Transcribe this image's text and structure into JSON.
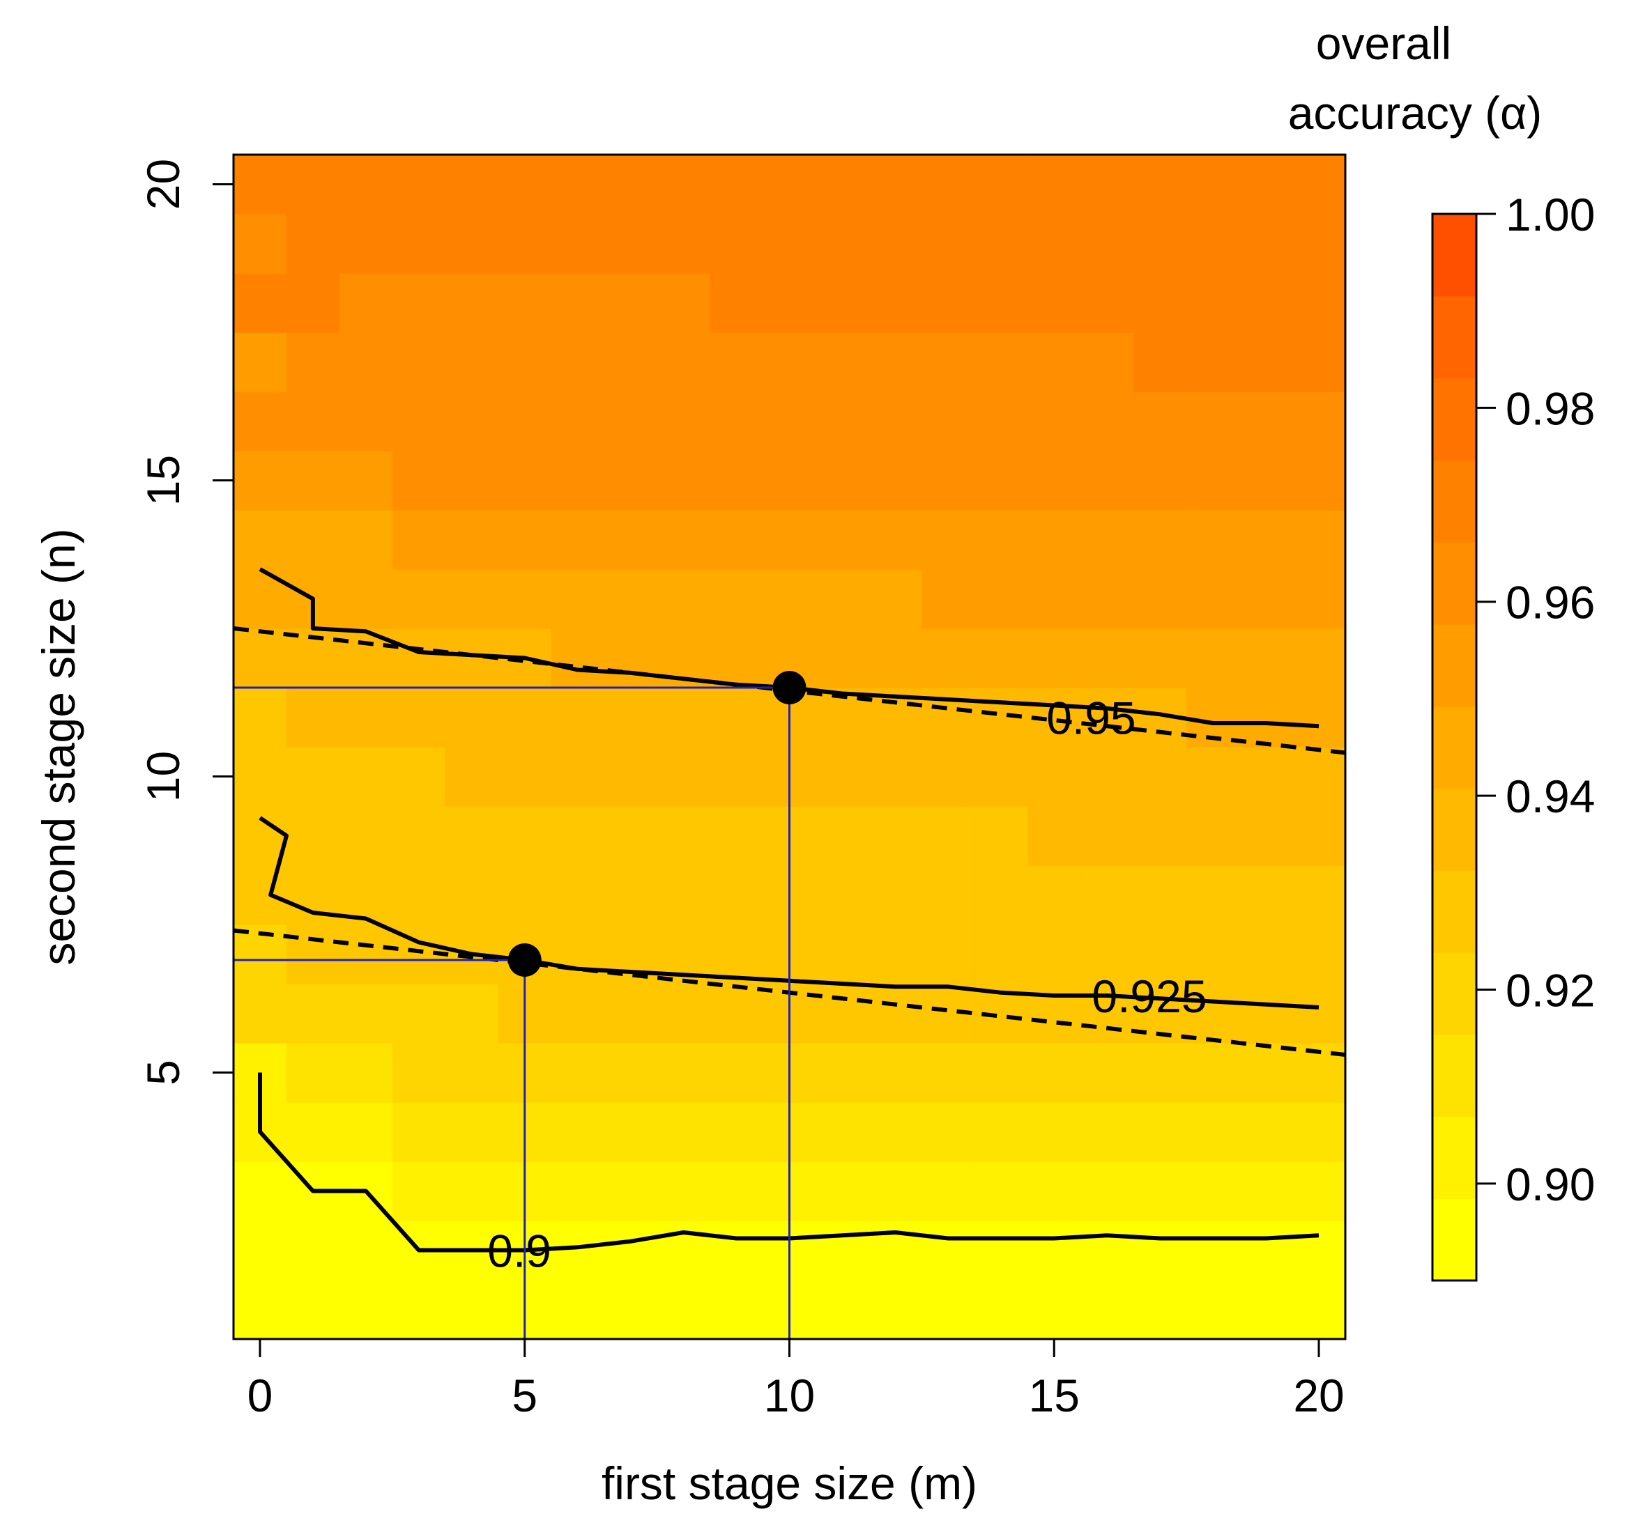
{
  "chart_data": {
    "type": "heatmap",
    "xlabel": "first stage size  (m)",
    "ylabel": "second stage size  (n)",
    "x_ticks": [
      0,
      5,
      10,
      15,
      20
    ],
    "y_ticks": [
      5,
      10,
      15,
      20
    ],
    "xlim": [
      -0.5,
      20.5
    ],
    "ylim": [
      0.5,
      20.5
    ],
    "legend": {
      "title_line1": "overall",
      "title_line2": "accuracy (α)",
      "min": 0.89,
      "max": 1.0,
      "ticks": [
        "0.90",
        "0.92",
        "0.94",
        "0.96",
        "0.98",
        "1.00"
      ],
      "tick_values": [
        0.9,
        0.92,
        0.94,
        0.96,
        0.98,
        1.0
      ],
      "colors": [
        "#FFFF00",
        "#FFF100",
        "#FFE300",
        "#FFD500",
        "#FFC700",
        "#FFB900",
        "#FFAB00",
        "#FF9D00",
        "#FF8F00",
        "#FF8100",
        "#FF7300",
        "#FF6500",
        "#FF5000"
      ],
      "placement": "right"
    },
    "heatmap_rows": [
      {
        "n": 1,
        "values": [
          0.89,
          0.89,
          0.89,
          0.89,
          0.89,
          0.89,
          0.89,
          0.89,
          0.89,
          0.89,
          0.89,
          0.89,
          0.89,
          0.89,
          0.89,
          0.89,
          0.89,
          0.89,
          0.89,
          0.89,
          0.89
        ]
      },
      {
        "n": 2,
        "values": [
          0.895,
          0.895,
          0.895,
          0.895,
          0.895,
          0.895,
          0.895,
          0.895,
          0.895,
          0.895,
          0.895,
          0.895,
          0.895,
          0.895,
          0.895,
          0.895,
          0.895,
          0.895,
          0.895,
          0.895,
          0.895
        ]
      },
      {
        "n": 3,
        "values": [
          0.895,
          0.895,
          0.895,
          0.903,
          0.903,
          0.903,
          0.903,
          0.903,
          0.903,
          0.903,
          0.903,
          0.903,
          0.903,
          0.903,
          0.903,
          0.903,
          0.903,
          0.903,
          0.903,
          0.903,
          0.903
        ]
      },
      {
        "n": 4,
        "values": [
          0.903,
          0.903,
          0.903,
          0.911,
          0.911,
          0.911,
          0.911,
          0.911,
          0.911,
          0.911,
          0.911,
          0.911,
          0.911,
          0.911,
          0.911,
          0.911,
          0.911,
          0.911,
          0.911,
          0.911,
          0.911
        ]
      },
      {
        "n": 5,
        "values": [
          0.903,
          0.911,
          0.911,
          0.918,
          0.918,
          0.918,
          0.918,
          0.918,
          0.918,
          0.918,
          0.918,
          0.918,
          0.918,
          0.918,
          0.918,
          0.918,
          0.918,
          0.918,
          0.918,
          0.918,
          0.918
        ]
      },
      {
        "n": 6,
        "values": [
          0.918,
          0.918,
          0.918,
          0.918,
          0.918,
          0.925,
          0.925,
          0.925,
          0.925,
          0.925,
          0.925,
          0.925,
          0.925,
          0.925,
          0.925,
          0.925,
          0.925,
          0.925,
          0.925,
          0.925,
          0.925
        ]
      },
      {
        "n": 7,
        "values": [
          0.918,
          0.925,
          0.925,
          0.925,
          0.925,
          0.925,
          0.925,
          0.925,
          0.925,
          0.925,
          0.925,
          0.925,
          0.925,
          0.925,
          0.925,
          0.925,
          0.925,
          0.925,
          0.925,
          0.925,
          0.932
        ]
      },
      {
        "n": 8,
        "values": [
          0.925,
          0.925,
          0.925,
          0.925,
          0.925,
          0.925,
          0.925,
          0.925,
          0.925,
          0.925,
          0.925,
          0.925,
          0.925,
          0.925,
          0.925,
          0.925,
          0.925,
          0.925,
          0.925,
          0.932,
          0.932
        ]
      },
      {
        "n": 9,
        "values": [
          0.925,
          0.932,
          0.932,
          0.932,
          0.932,
          0.932,
          0.932,
          0.932,
          0.932,
          0.932,
          0.932,
          0.932,
          0.932,
          0.932,
          0.932,
          0.939,
          0.939,
          0.939,
          0.939,
          0.939,
          0.939
        ]
      },
      {
        "n": 10,
        "values": [
          0.932,
          0.932,
          0.932,
          0.932,
          0.939,
          0.939,
          0.939,
          0.939,
          0.939,
          0.939,
          0.939,
          0.939,
          0.939,
          0.939,
          0.939,
          0.939,
          0.939,
          0.939,
          0.939,
          0.939,
          0.939
        ]
      },
      {
        "n": 11,
        "values": [
          0.932,
          0.939,
          0.939,
          0.939,
          0.939,
          0.939,
          0.939,
          0.939,
          0.939,
          0.939,
          0.939,
          0.939,
          0.939,
          0.939,
          0.939,
          0.939,
          0.939,
          0.939,
          0.946,
          0.946,
          0.946
        ]
      },
      {
        "n": 12,
        "values": [
          0.939,
          0.939,
          0.939,
          0.939,
          0.939,
          0.939,
          0.946,
          0.946,
          0.946,
          0.946,
          0.946,
          0.946,
          0.946,
          0.946,
          0.946,
          0.946,
          0.946,
          0.946,
          0.946,
          0.946,
          0.946
        ]
      },
      {
        "n": 13,
        "values": [
          0.946,
          0.946,
          0.946,
          0.946,
          0.946,
          0.946,
          0.946,
          0.946,
          0.946,
          0.946,
          0.946,
          0.946,
          0.946,
          0.954,
          0.954,
          0.954,
          0.954,
          0.954,
          0.954,
          0.954,
          0.954
        ]
      },
      {
        "n": 14,
        "values": [
          0.946,
          0.946,
          0.946,
          0.954,
          0.954,
          0.954,
          0.954,
          0.954,
          0.954,
          0.954,
          0.954,
          0.954,
          0.954,
          0.954,
          0.954,
          0.954,
          0.954,
          0.954,
          0.954,
          0.954,
          0.954
        ]
      },
      {
        "n": 15,
        "values": [
          0.954,
          0.954,
          0.954,
          0.961,
          0.961,
          0.961,
          0.961,
          0.961,
          0.961,
          0.961,
          0.961,
          0.961,
          0.961,
          0.961,
          0.961,
          0.961,
          0.961,
          0.961,
          0.961,
          0.961,
          0.961
        ]
      },
      {
        "n": 16,
        "values": [
          0.961,
          0.961,
          0.961,
          0.961,
          0.961,
          0.961,
          0.961,
          0.961,
          0.961,
          0.961,
          0.961,
          0.961,
          0.961,
          0.961,
          0.961,
          0.961,
          0.961,
          0.961,
          0.961,
          0.961,
          0.961
        ]
      },
      {
        "n": 17,
        "values": [
          0.954,
          0.961,
          0.961,
          0.961,
          0.961,
          0.961,
          0.961,
          0.961,
          0.961,
          0.961,
          0.961,
          0.961,
          0.961,
          0.961,
          0.961,
          0.961,
          0.961,
          0.968,
          0.968,
          0.968,
          0.968
        ]
      },
      {
        "n": 18,
        "values": [
          0.968,
          0.968,
          0.961,
          0.961,
          0.961,
          0.961,
          0.961,
          0.961,
          0.961,
          0.968,
          0.968,
          0.968,
          0.968,
          0.968,
          0.968,
          0.968,
          0.968,
          0.968,
          0.968,
          0.968,
          0.968
        ]
      },
      {
        "n": 19,
        "values": [
          0.961,
          0.968,
          0.968,
          0.968,
          0.968,
          0.968,
          0.968,
          0.968,
          0.968,
          0.968,
          0.968,
          0.968,
          0.968,
          0.968,
          0.968,
          0.968,
          0.968,
          0.968,
          0.968,
          0.968,
          0.968
        ]
      },
      {
        "n": 20,
        "values": [
          0.968,
          0.968,
          0.968,
          0.968,
          0.968,
          0.968,
          0.968,
          0.968,
          0.968,
          0.968,
          0.968,
          0.968,
          0.968,
          0.968,
          0.968,
          0.968,
          0.968,
          0.968,
          0.968,
          0.968,
          0.968
        ]
      }
    ],
    "contours": [
      {
        "level": "0.95",
        "label": "0.95",
        "label_at": [
          15.7,
          11.0
        ],
        "points": [
          [
            0,
            13.5
          ],
          [
            1,
            13.0
          ],
          [
            1,
            12.5
          ],
          [
            2,
            12.45
          ],
          [
            3,
            12.1
          ],
          [
            4,
            12.05
          ],
          [
            5,
            12.0
          ],
          [
            6,
            11.8
          ],
          [
            7,
            11.75
          ],
          [
            8,
            11.65
          ],
          [
            9,
            11.55
          ],
          [
            10,
            11.5
          ],
          [
            11,
            11.4
          ],
          [
            12,
            11.35
          ],
          [
            13,
            11.3
          ],
          [
            14,
            11.25
          ],
          [
            15,
            11.2
          ],
          [
            16,
            11.15
          ],
          [
            17,
            11.05
          ],
          [
            18,
            10.9
          ],
          [
            19,
            10.9
          ],
          [
            20,
            10.85
          ]
        ]
      },
      {
        "level": "0.925",
        "label": "0.925",
        "label_at": [
          16.8,
          6.3
        ],
        "points": [
          [
            0,
            9.3
          ],
          [
            0.5,
            9.0
          ],
          [
            0.2,
            8.0
          ],
          [
            1,
            7.7
          ],
          [
            2,
            7.6
          ],
          [
            3,
            7.2
          ],
          [
            4,
            7.0
          ],
          [
            5,
            6.9
          ],
          [
            6,
            6.75
          ],
          [
            7,
            6.7
          ],
          [
            8,
            6.65
          ],
          [
            9,
            6.6
          ],
          [
            10,
            6.55
          ],
          [
            11,
            6.5
          ],
          [
            12,
            6.45
          ],
          [
            13,
            6.45
          ],
          [
            14,
            6.35
          ],
          [
            15,
            6.3
          ],
          [
            16,
            6.3
          ],
          [
            17,
            6.25
          ],
          [
            18,
            6.2
          ],
          [
            19,
            6.15
          ],
          [
            20,
            6.1
          ]
        ]
      },
      {
        "level": "0.9",
        "label": "0.9",
        "label_at": [
          4.9,
          2.0
        ],
        "points": [
          [
            0,
            5.0
          ],
          [
            0,
            4.0
          ],
          [
            1,
            3.0
          ],
          [
            2,
            3.0
          ],
          [
            3,
            2.0
          ],
          [
            4,
            2.0
          ],
          [
            5,
            2.0
          ],
          [
            6,
            2.05
          ],
          [
            7,
            2.15
          ],
          [
            8,
            2.3
          ],
          [
            9,
            2.2
          ],
          [
            10,
            2.2
          ],
          [
            11,
            2.25
          ],
          [
            12,
            2.3
          ],
          [
            13,
            2.2
          ],
          [
            14,
            2.2
          ],
          [
            15,
            2.2
          ],
          [
            16,
            2.25
          ],
          [
            17,
            2.2
          ],
          [
            18,
            2.2
          ],
          [
            19,
            2.2
          ],
          [
            20,
            2.25
          ]
        ]
      }
    ],
    "dashed_lines": [
      {
        "name": "approx-0.95",
        "x": [
          -0.5,
          20.5
        ],
        "y": [
          12.5,
          10.4
        ]
      },
      {
        "name": "approx-0.925",
        "x": [
          -0.5,
          20.5
        ],
        "y": [
          7.4,
          5.3
        ]
      }
    ],
    "highlight_points": [
      {
        "x": 5,
        "y": 6.9
      },
      {
        "x": 10,
        "y": 11.5
      }
    ],
    "guide_line_color": "#2020C0"
  }
}
